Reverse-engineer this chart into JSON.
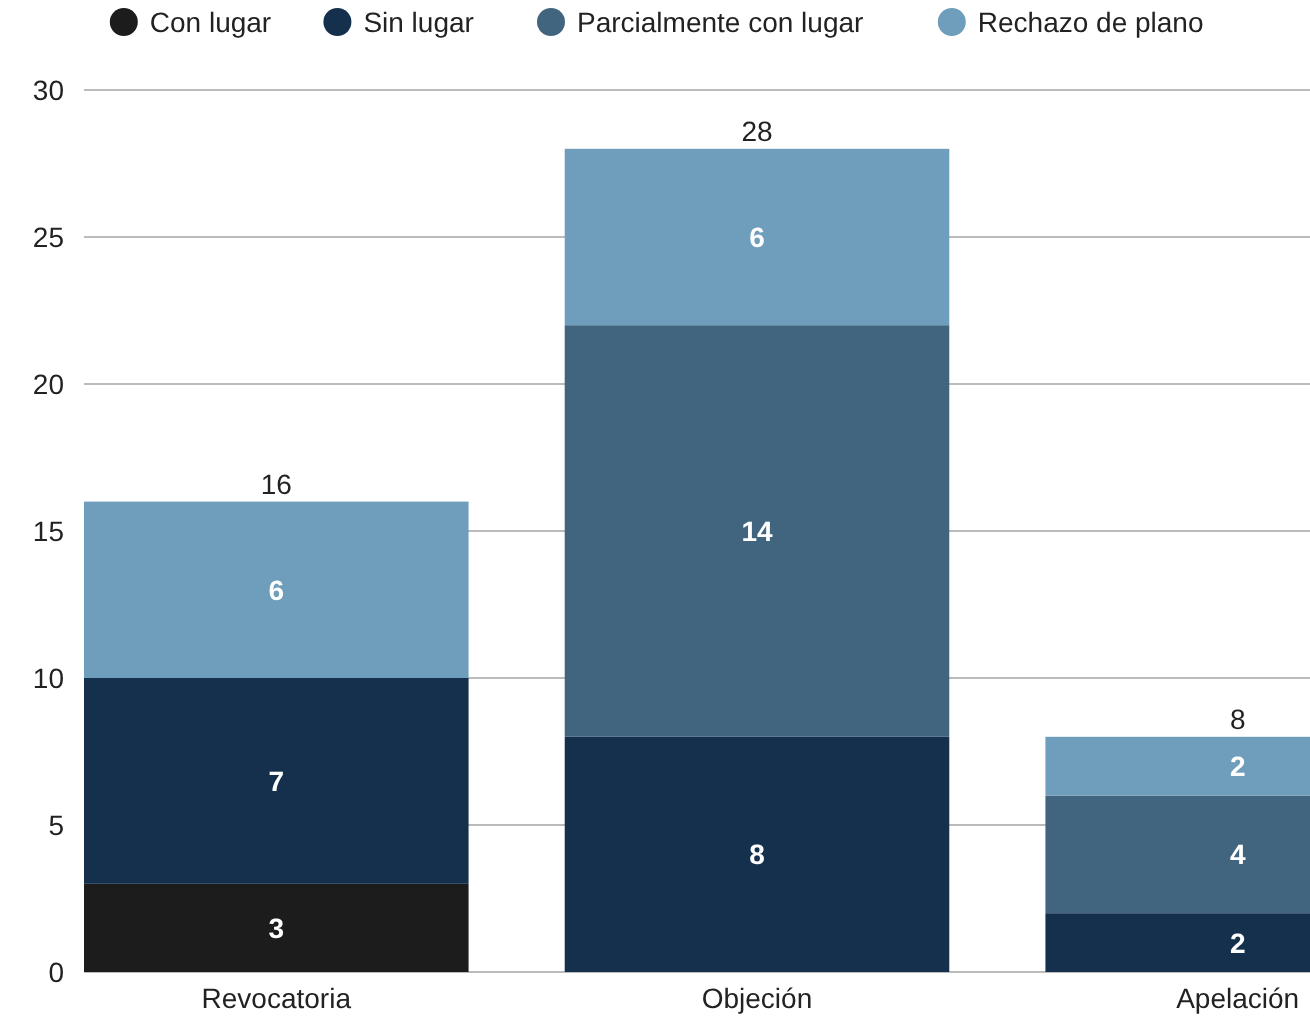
{
  "chart_data": {
    "type": "bar",
    "stacked": true,
    "categories": [
      "Revocatoria",
      "Objeción",
      "Apelación"
    ],
    "series": [
      {
        "name": "Con lugar",
        "color": "#1c1c1c",
        "values": [
          3,
          0,
          0
        ],
        "value_labels": [
          "3",
          null,
          null
        ]
      },
      {
        "name": "Sin lugar",
        "color": "#15304d",
        "values": [
          7,
          8,
          2
        ],
        "value_labels": [
          "7",
          "8",
          "2"
        ]
      },
      {
        "name": "Parcialmente con lugar",
        "color": "#41647f",
        "values": [
          0,
          14,
          4
        ],
        "value_labels": [
          null,
          "14",
          "4"
        ]
      },
      {
        "name": "Rechazo de plano",
        "color": "#6f9ebd",
        "values": [
          6,
          6,
          2
        ],
        "value_labels": [
          "6",
          "6",
          "2"
        ]
      }
    ],
    "totals": [
      "16",
      "28",
      "8"
    ],
    "ylim": [
      0,
      30
    ],
    "yticks": [
      0,
      5,
      10,
      15,
      20,
      25,
      30
    ],
    "grid": "y",
    "legend": "top"
  }
}
